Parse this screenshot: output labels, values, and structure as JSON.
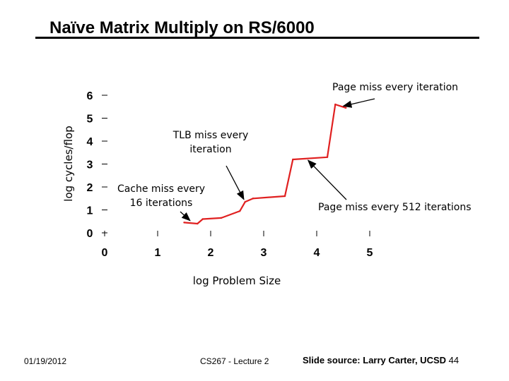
{
  "slide": {
    "title": "Naïve Matrix Multiply on RS/6000",
    "footer_date": "01/19/2012",
    "footer_course": "CS267 - Lecture 2",
    "footer_source": "Slide source: Larry Carter, UCSD",
    "page_number": "44"
  },
  "chart_data": {
    "type": "line",
    "title": "",
    "xlabel": "log Problem Size",
    "ylabel": "log cycles/flop",
    "x_ticks": [
      "0",
      "1",
      "2",
      "3",
      "4",
      "5"
    ],
    "y_ticks": [
      "0",
      "1",
      "2",
      "3",
      "4",
      "5",
      "6"
    ],
    "xlim": [
      0,
      5
    ],
    "ylim": [
      0,
      6
    ],
    "series": [
      {
        "name": "log cycles/flop",
        "color": "#e02020",
        "points": [
          [
            1.5,
            0.45
          ],
          [
            1.75,
            0.4
          ],
          [
            1.85,
            0.6
          ],
          [
            2.2,
            0.65
          ],
          [
            2.55,
            0.95
          ],
          [
            2.65,
            1.35
          ],
          [
            2.8,
            1.5
          ],
          [
            3.4,
            1.6
          ],
          [
            3.55,
            3.2
          ],
          [
            4.2,
            3.3
          ],
          [
            4.35,
            5.6
          ],
          [
            4.55,
            5.45
          ]
        ]
      }
    ],
    "annotations": [
      {
        "id": "page-miss-every-iteration",
        "text": [
          "Page miss every iteration"
        ],
        "x": 4.45,
        "y": 5.5
      },
      {
        "id": "tlb-miss-every-iteration",
        "text": [
          "TLB miss every",
          "iteration"
        ],
        "x": 2.65,
        "y": 1.35
      },
      {
        "id": "cache-miss-every-16",
        "text": [
          "Cache miss every",
          "16 iterations"
        ],
        "x": 1.65,
        "y": 0.45
      },
      {
        "id": "page-miss-every-512",
        "text": [
          "Page miss every 512 iterations"
        ],
        "x": 3.8,
        "y": 3.25
      }
    ]
  }
}
